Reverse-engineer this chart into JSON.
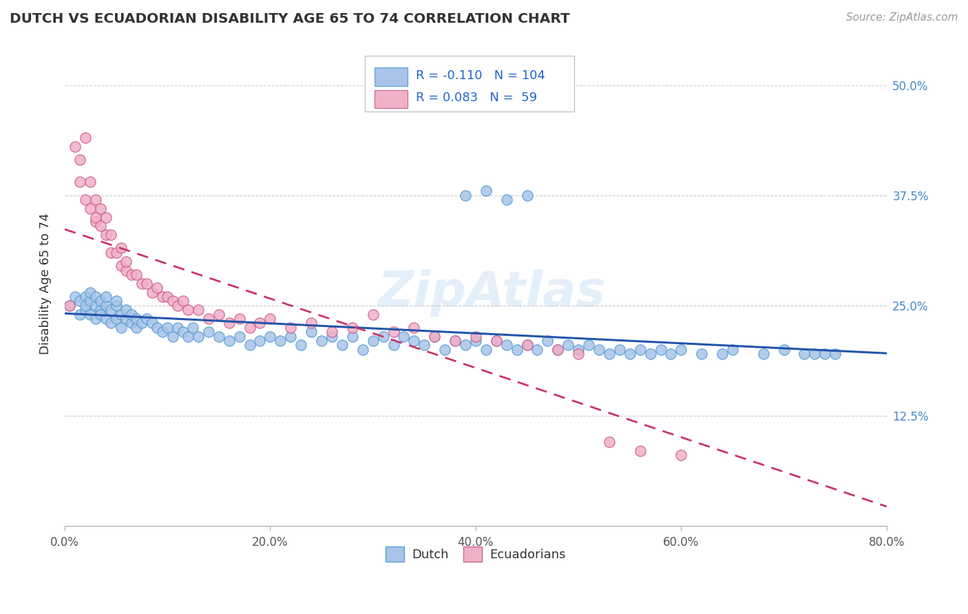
{
  "title": "DUTCH VS ECUADORIAN DISABILITY AGE 65 TO 74 CORRELATION CHART",
  "source_text": "Source: ZipAtlas.com",
  "ylabel": "Disability Age 65 to 74",
  "xlim": [
    0.0,
    0.8
  ],
  "ylim": [
    0.0,
    0.55
  ],
  "xticks": [
    0.0,
    0.2,
    0.4,
    0.6,
    0.8
  ],
  "xticklabels": [
    "0.0%",
    "20.0%",
    "40.0%",
    "60.0%",
    "80.0%"
  ],
  "yticks": [
    0.0,
    0.125,
    0.25,
    0.375,
    0.5
  ],
  "yticklabels": [
    "",
    "12.5%",
    "25.0%",
    "37.5%",
    "50.0%"
  ],
  "dutch_R": -0.11,
  "dutch_N": 104,
  "ecuadorian_R": 0.083,
  "ecuadorian_N": 59,
  "dutch_color": "#a8c4e8",
  "dutch_edge_color": "#5a9fd4",
  "ecuadorian_color": "#f0b0c8",
  "ecuadorian_edge_color": "#d06090",
  "trend_dutch_color": "#2255aa",
  "trend_ecuadorian_color": "#cc3366",
  "watermark": "ZipAtlas",
  "legend_label_dutch": "Dutch",
  "legend_label_ecuadorian": "Ecuadorians",
  "dutch_x": [
    0.005,
    0.01,
    0.015,
    0.015,
    0.02,
    0.02,
    0.02,
    0.025,
    0.025,
    0.025,
    0.03,
    0.03,
    0.03,
    0.035,
    0.035,
    0.035,
    0.04,
    0.04,
    0.04,
    0.045,
    0.045,
    0.05,
    0.05,
    0.05,
    0.055,
    0.055,
    0.06,
    0.06,
    0.065,
    0.065,
    0.07,
    0.07,
    0.075,
    0.08,
    0.085,
    0.09,
    0.095,
    0.1,
    0.105,
    0.11,
    0.115,
    0.12,
    0.125,
    0.13,
    0.14,
    0.15,
    0.16,
    0.17,
    0.18,
    0.19,
    0.2,
    0.21,
    0.22,
    0.23,
    0.24,
    0.25,
    0.26,
    0.27,
    0.28,
    0.29,
    0.3,
    0.31,
    0.32,
    0.33,
    0.34,
    0.35,
    0.36,
    0.37,
    0.38,
    0.39,
    0.4,
    0.41,
    0.42,
    0.43,
    0.44,
    0.45,
    0.46,
    0.47,
    0.48,
    0.49,
    0.5,
    0.51,
    0.52,
    0.53,
    0.54,
    0.55,
    0.56,
    0.57,
    0.58,
    0.59,
    0.6,
    0.62,
    0.64,
    0.65,
    0.68,
    0.7,
    0.72,
    0.73,
    0.74,
    0.75,
    0.39,
    0.41,
    0.43,
    0.45
  ],
  "dutch_y": [
    0.25,
    0.26,
    0.24,
    0.255,
    0.245,
    0.26,
    0.25,
    0.24,
    0.255,
    0.265,
    0.235,
    0.25,
    0.26,
    0.245,
    0.255,
    0.24,
    0.235,
    0.25,
    0.26,
    0.23,
    0.245,
    0.235,
    0.25,
    0.255,
    0.225,
    0.24,
    0.235,
    0.245,
    0.23,
    0.24,
    0.225,
    0.235,
    0.23,
    0.235,
    0.23,
    0.225,
    0.22,
    0.225,
    0.215,
    0.225,
    0.22,
    0.215,
    0.225,
    0.215,
    0.22,
    0.215,
    0.21,
    0.215,
    0.205,
    0.21,
    0.215,
    0.21,
    0.215,
    0.205,
    0.22,
    0.21,
    0.215,
    0.205,
    0.215,
    0.2,
    0.21,
    0.215,
    0.205,
    0.215,
    0.21,
    0.205,
    0.215,
    0.2,
    0.21,
    0.205,
    0.21,
    0.2,
    0.21,
    0.205,
    0.2,
    0.205,
    0.2,
    0.21,
    0.2,
    0.205,
    0.2,
    0.205,
    0.2,
    0.195,
    0.2,
    0.195,
    0.2,
    0.195,
    0.2,
    0.195,
    0.2,
    0.195,
    0.195,
    0.2,
    0.195,
    0.2,
    0.195,
    0.195,
    0.195,
    0.195,
    0.375,
    0.38,
    0.37,
    0.375
  ],
  "ecuadorian_x": [
    0.005,
    0.01,
    0.015,
    0.015,
    0.02,
    0.02,
    0.025,
    0.025,
    0.03,
    0.03,
    0.03,
    0.035,
    0.035,
    0.04,
    0.04,
    0.045,
    0.045,
    0.05,
    0.055,
    0.055,
    0.06,
    0.06,
    0.065,
    0.07,
    0.075,
    0.08,
    0.085,
    0.09,
    0.095,
    0.1,
    0.105,
    0.11,
    0.115,
    0.12,
    0.13,
    0.14,
    0.15,
    0.16,
    0.17,
    0.18,
    0.19,
    0.2,
    0.22,
    0.24,
    0.26,
    0.28,
    0.3,
    0.32,
    0.34,
    0.36,
    0.38,
    0.4,
    0.42,
    0.45,
    0.48,
    0.5,
    0.53,
    0.56,
    0.6
  ],
  "ecuadorian_y": [
    0.25,
    0.43,
    0.415,
    0.39,
    0.37,
    0.44,
    0.36,
    0.39,
    0.345,
    0.37,
    0.35,
    0.34,
    0.36,
    0.33,
    0.35,
    0.31,
    0.33,
    0.31,
    0.295,
    0.315,
    0.29,
    0.3,
    0.285,
    0.285,
    0.275,
    0.275,
    0.265,
    0.27,
    0.26,
    0.26,
    0.255,
    0.25,
    0.255,
    0.245,
    0.245,
    0.235,
    0.24,
    0.23,
    0.235,
    0.225,
    0.23,
    0.235,
    0.225,
    0.23,
    0.22,
    0.225,
    0.24,
    0.22,
    0.225,
    0.215,
    0.21,
    0.215,
    0.21,
    0.205,
    0.2,
    0.195,
    0.095,
    0.085,
    0.08
  ]
}
